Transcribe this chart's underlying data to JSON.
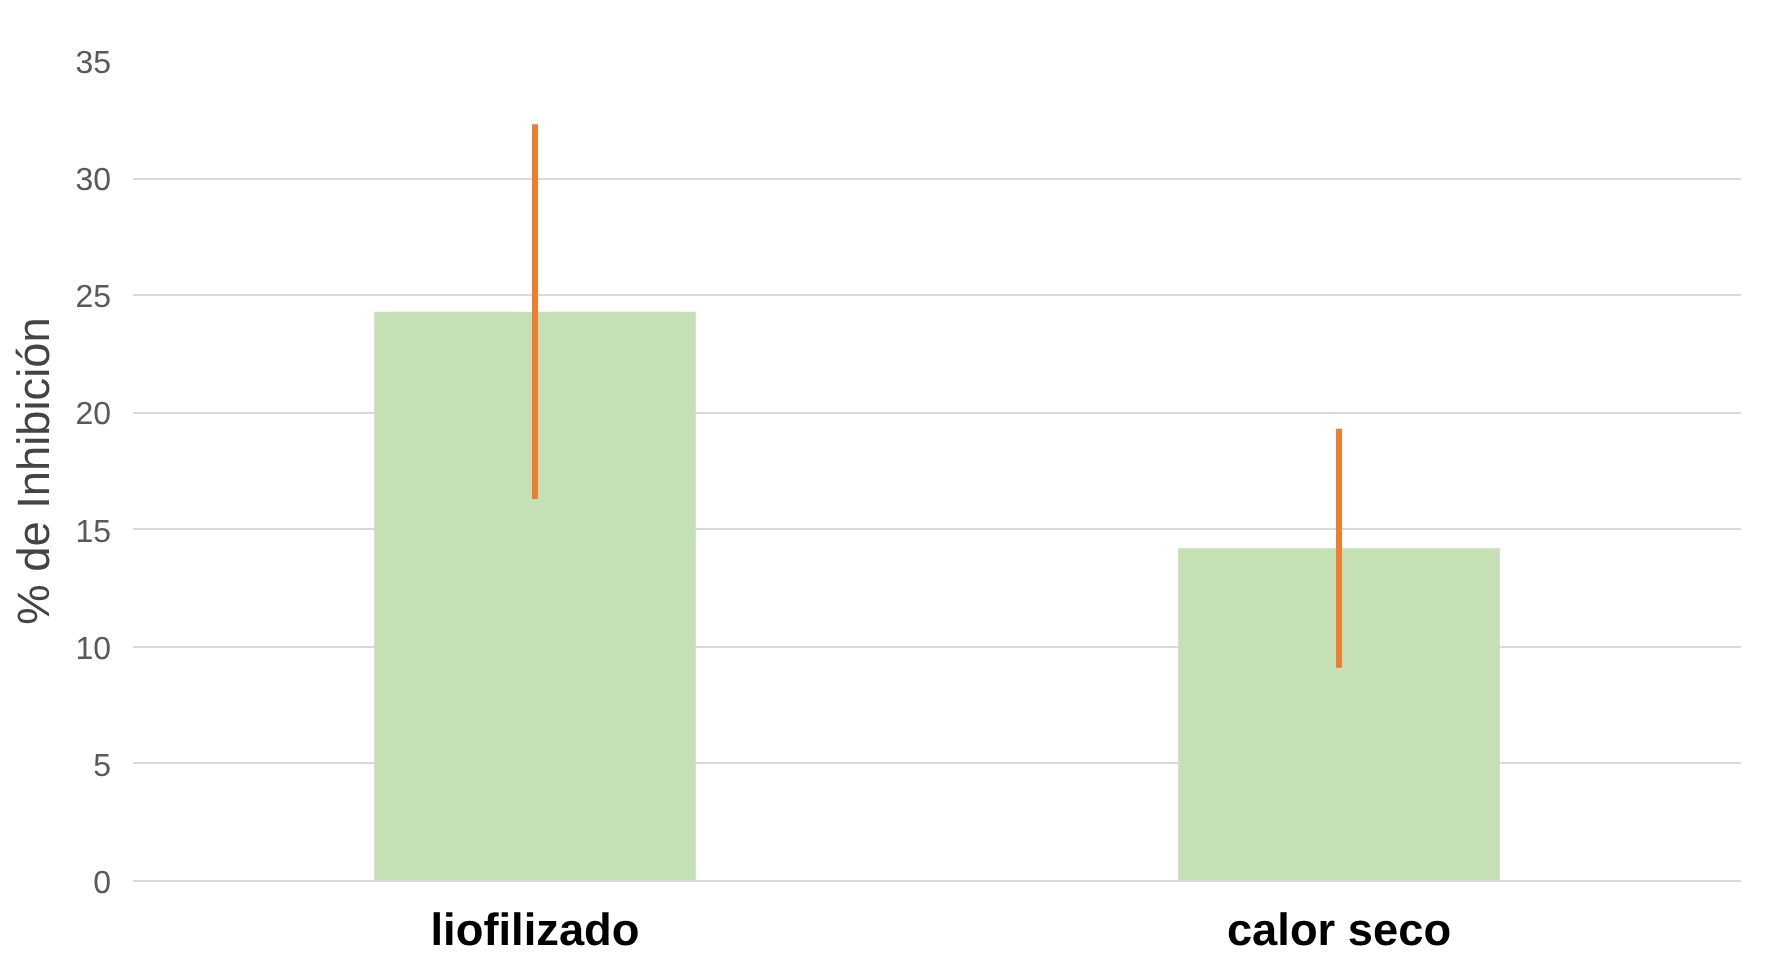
{
  "chart_data": {
    "type": "bar",
    "ylabel": "% de Inhibición",
    "categories": [
      "liofilizado",
      "calor seco"
    ],
    "values": [
      24.3,
      14.2
    ],
    "color": "#c5e0b4",
    "errors": [
      8.0,
      5.1
    ],
    "ylim": [
      0,
      35
    ],
    "yticks": [
      0,
      5,
      10,
      15,
      20,
      25,
      30,
      35
    ],
    "grid": "y"
  }
}
